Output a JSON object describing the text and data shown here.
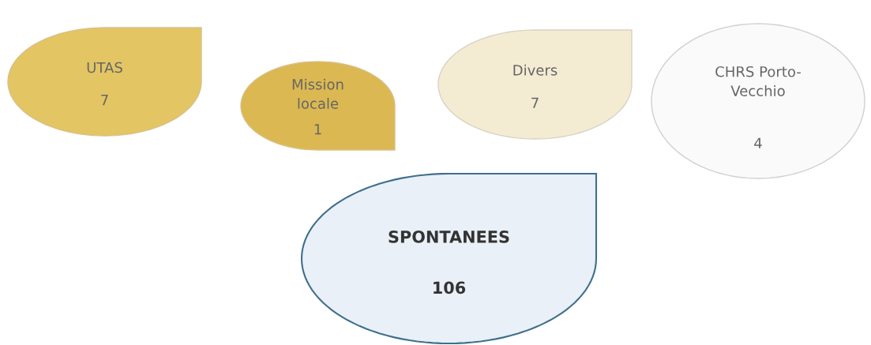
{
  "chart_data": {
    "type": "other",
    "categories": [
      "UTAS",
      "Mission\nlocale",
      "Divers",
      "CHRS Porto-\nVecchio",
      "SPONTANEES"
    ],
    "values": [
      7,
      1,
      7,
      4,
      106
    ],
    "data_labels": true,
    "colors": [
      "#e3c563",
      "#dbb851",
      "#f4ebd3",
      "#fafafa",
      "#e9f0f7"
    ]
  }
}
